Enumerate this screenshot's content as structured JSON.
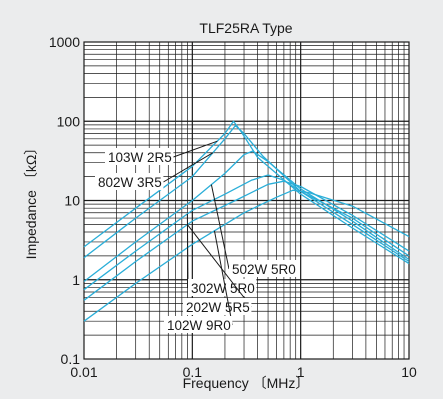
{
  "chart_data": {
    "type": "line",
    "title": "TLF25RA Type",
    "xlabel": "Frequency 〔MHz〕",
    "ylabel": "Impedance 〔kΩ〕",
    "xscale": "log",
    "yscale": "log",
    "xlim": [
      0.01,
      10
    ],
    "ylim": [
      0.1,
      1000
    ],
    "xticks": [
      "0.01",
      "0.1",
      "1",
      "10"
    ],
    "yticks": [
      "1000",
      "100",
      "10",
      "1",
      "0.1"
    ],
    "grid": true,
    "line_color": "#2aaed8",
    "series": [
      {
        "name": "103W 2R5",
        "points": [
          [
            0.01,
            2.6
          ],
          [
            0.03,
            8
          ],
          [
            0.1,
            27
          ],
          [
            0.2,
            70
          ],
          [
            0.24,
            100
          ],
          [
            0.28,
            75
          ],
          [
            0.4,
            35
          ],
          [
            1,
            12
          ],
          [
            3,
            4.5
          ],
          [
            10,
            1.6
          ]
        ]
      },
      {
        "name": "802W 3R5",
        "points": [
          [
            0.01,
            1.9
          ],
          [
            0.03,
            6
          ],
          [
            0.1,
            20
          ],
          [
            0.2,
            60
          ],
          [
            0.25,
            88
          ],
          [
            0.3,
            70
          ],
          [
            0.45,
            36
          ],
          [
            1,
            13
          ],
          [
            3,
            5
          ],
          [
            10,
            1.7
          ]
        ]
      },
      {
        "name": "502W 5R0",
        "points": [
          [
            0.01,
            0.95
          ],
          [
            0.03,
            3
          ],
          [
            0.1,
            10
          ],
          [
            0.2,
            22
          ],
          [
            0.3,
            38
          ],
          [
            0.36,
            42
          ],
          [
            0.5,
            31
          ],
          [
            1,
            14
          ],
          [
            3,
            5.5
          ],
          [
            10,
            1.8
          ]
        ]
      },
      {
        "name": "302W 5R0",
        "points": [
          [
            0.01,
            0.75
          ],
          [
            0.03,
            2.3
          ],
          [
            0.1,
            7.5
          ],
          [
            0.2,
            12
          ],
          [
            0.35,
            18
          ],
          [
            0.5,
            21
          ],
          [
            0.7,
            18
          ],
          [
            1,
            13
          ],
          [
            3,
            6
          ],
          [
            10,
            2
          ]
        ]
      },
      {
        "name": "202W 5R5",
        "points": [
          [
            0.01,
            0.55
          ],
          [
            0.03,
            1.7
          ],
          [
            0.1,
            5.5
          ],
          [
            0.25,
            10
          ],
          [
            0.5,
            16
          ],
          [
            0.7,
            17.5
          ],
          [
            1,
            15
          ],
          [
            3,
            6.5
          ],
          [
            10,
            2.3
          ]
        ]
      },
      {
        "name": "102W 9R0",
        "points": [
          [
            0.01,
            0.3
          ],
          [
            0.03,
            0.9
          ],
          [
            0.1,
            2.8
          ],
          [
            0.3,
            7
          ],
          [
            0.6,
            11
          ],
          [
            0.85,
            13.5
          ],
          [
            1.2,
            12.5
          ],
          [
            3,
            8.5
          ],
          [
            10,
            3.5
          ]
        ]
      }
    ]
  }
}
